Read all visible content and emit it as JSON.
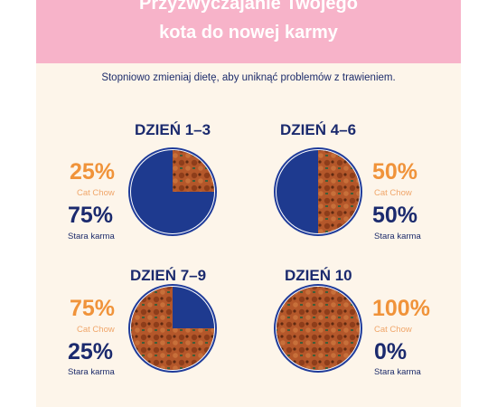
{
  "header": {
    "title_line1": "Przyzwyczajanie Twojego",
    "title_line2": "kota do nowej karmy"
  },
  "subtitle": "Stopniowo zmieniaj dietę, aby uniknąć problemów z trawieniem.",
  "stages": [
    {
      "day": "DZIEŃ 1–3",
      "new_pct": "25%",
      "new_label": "Cat Chow",
      "old_pct": "75%",
      "old_label": "Stara karma",
      "new_fraction": 0.25
    },
    {
      "day": "DZIEŃ 4–6",
      "new_pct": "50%",
      "new_label": "Cat Chow",
      "old_pct": "50%",
      "old_label": "Stara karma",
      "new_fraction": 0.5
    },
    {
      "day": "DZIEŃ 7–9",
      "new_pct": "75%",
      "new_label": "Cat Chow",
      "old_pct": "25%",
      "old_label": "Stara karma",
      "new_fraction": 0.75
    },
    {
      "day": "DZIEŃ 10",
      "new_pct": "100%",
      "new_label": "Cat Chow",
      "old_pct": "0%",
      "old_label": "Stara karma",
      "new_fraction": 1.0
    }
  ],
  "colors": {
    "banner": "#f7b3c9",
    "background": "#fdf5ea",
    "navy": "#1b2a6e",
    "orange": "#f0933a",
    "bowl_ring": "#1f3b9a",
    "old_food": "#1e3a8f",
    "new_food": "#b4572a"
  }
}
